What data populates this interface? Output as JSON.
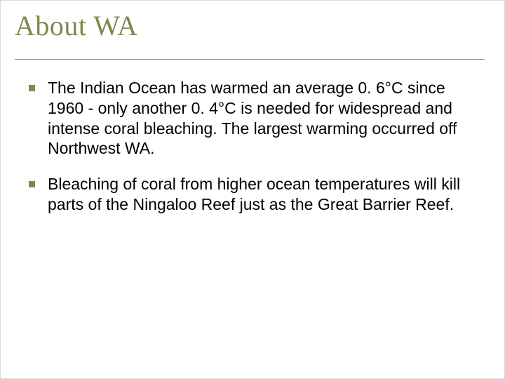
{
  "slide": {
    "title": "About WA",
    "title_color": "#7a8a4f",
    "title_font": "Garamond",
    "title_fontsize": 40,
    "rule_color": "#9a8d6b",
    "body_font": "Arial",
    "body_fontsize": 23,
    "body_color": "#000000",
    "bullet_color": "#7a8a4f",
    "bullet_size": 9,
    "background_color": "#ffffff",
    "bullets": [
      "The Indian Ocean has warmed an average 0. 6°C since 1960 - only another 0. 4°C is needed for widespread and intense coral bleaching. The largest warming occurred off Northwest WA.",
      "Bleaching of coral from higher ocean temperatures will kill parts of the Ningaloo Reef just as the Great Barrier Reef."
    ]
  }
}
